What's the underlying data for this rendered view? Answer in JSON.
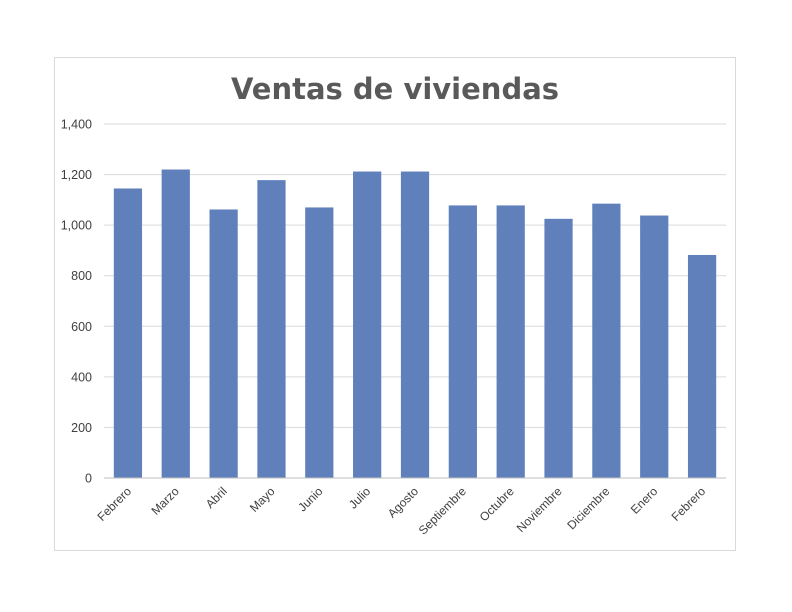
{
  "chart_data": {
    "type": "bar",
    "title": "Ventas de viviendas",
    "categories": [
      "Febrero",
      "Marzo",
      "Abril",
      "Mayo",
      "Junio",
      "Julio",
      "Agosto",
      "Septiembre",
      "Octubre",
      "Noviembre",
      "Diciembre",
      "Enero",
      "Febrero"
    ],
    "series": [
      {
        "values": [
          1145,
          1220,
          1062,
          1178,
          1070,
          1212,
          1212,
          1078,
          1078,
          1025,
          1085,
          1038,
          882
        ]
      }
    ],
    "yticks": [
      "0",
      "200",
      "400",
      "600",
      "800",
      "1,000",
      "1,200",
      "1,400"
    ],
    "ytick_values": [
      0,
      200,
      400,
      600,
      800,
      1000,
      1200,
      1400
    ],
    "ylim": [
      0,
      1400
    ],
    "xlabel": "",
    "ylabel": "",
    "grid": true,
    "legend": "none",
    "colors": {
      "bar": "#6080bc",
      "grid": "#d9d9d9",
      "axis": "#bfbfbf",
      "title": "#595959",
      "label": "#404040"
    }
  }
}
